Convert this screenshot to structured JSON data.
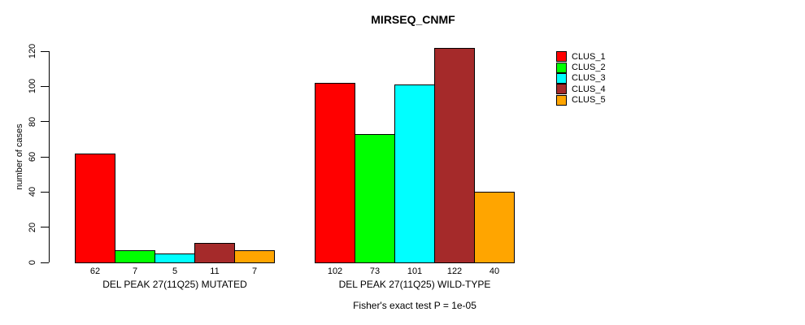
{
  "title": "MIRSEQ_CNMF",
  "chart_data": {
    "type": "bar",
    "title": "MIRSEQ_CNMF",
    "xlabel": "",
    "ylabel": "number of cases",
    "ylim": [
      0,
      120
    ],
    "yticks": [
      0,
      20,
      40,
      60,
      80,
      100,
      120
    ],
    "grid": false,
    "legend_position": "right-outside",
    "categories": [
      "DEL PEAK 27(11Q25) MUTATED",
      "DEL PEAK 27(11Q25) WILD-TYPE"
    ],
    "series": [
      {
        "name": "CLUS_1",
        "color": "#FF0000",
        "values": [
          62,
          102
        ]
      },
      {
        "name": "CLUS_2",
        "color": "#00FF00",
        "values": [
          7,
          73
        ]
      },
      {
        "name": "CLUS_3",
        "color": "#00FFFF",
        "values": [
          5,
          101
        ]
      },
      {
        "name": "CLUS_4",
        "color": "#A52A2A",
        "values": [
          11,
          122
        ]
      },
      {
        "name": "CLUS_5",
        "color": "#FFA500",
        "values": [
          7,
          40
        ]
      }
    ],
    "bar_value_labels_shown": true,
    "annotation": "Fisher's exact test P = 1e-05",
    "colors": {
      "background": "#FFFFFF",
      "axis": "#000000",
      "text": "#000000"
    }
  }
}
